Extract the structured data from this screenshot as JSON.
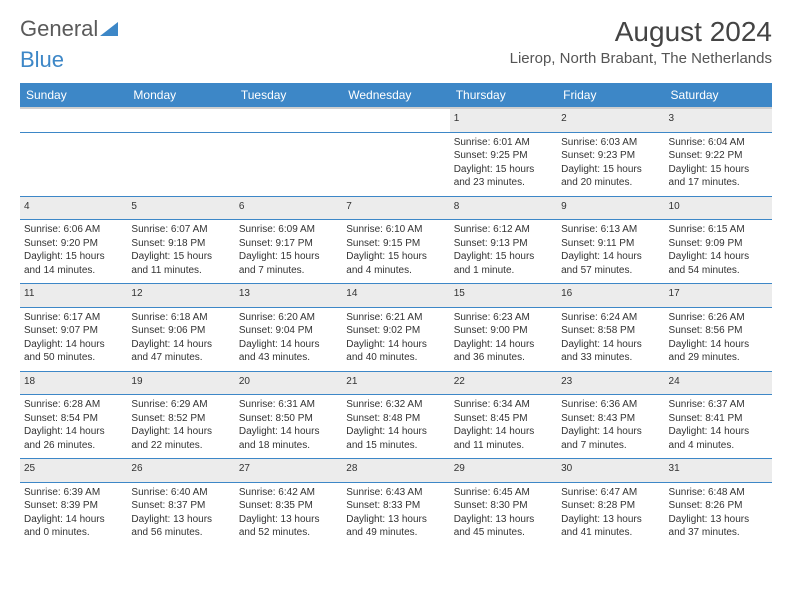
{
  "logo": {
    "part1": "General",
    "part2": "Blue"
  },
  "title": "August 2024",
  "location": "Lierop, North Brabant, The Netherlands",
  "colors": {
    "header_bg": "#3d87c7",
    "header_text": "#ffffff",
    "daynum_bg": "#ececec",
    "border": "#3d87c7",
    "text": "#333333"
  },
  "day_headers": [
    "Sunday",
    "Monday",
    "Tuesday",
    "Wednesday",
    "Thursday",
    "Friday",
    "Saturday"
  ],
  "weeks": [
    [
      null,
      null,
      null,
      null,
      {
        "n": "1",
        "sr": "Sunrise: 6:01 AM",
        "ss": "Sunset: 9:25 PM",
        "dl": "Daylight: 15 hours and 23 minutes."
      },
      {
        "n": "2",
        "sr": "Sunrise: 6:03 AM",
        "ss": "Sunset: 9:23 PM",
        "dl": "Daylight: 15 hours and 20 minutes."
      },
      {
        "n": "3",
        "sr": "Sunrise: 6:04 AM",
        "ss": "Sunset: 9:22 PM",
        "dl": "Daylight: 15 hours and 17 minutes."
      }
    ],
    [
      {
        "n": "4",
        "sr": "Sunrise: 6:06 AM",
        "ss": "Sunset: 9:20 PM",
        "dl": "Daylight: 15 hours and 14 minutes."
      },
      {
        "n": "5",
        "sr": "Sunrise: 6:07 AM",
        "ss": "Sunset: 9:18 PM",
        "dl": "Daylight: 15 hours and 11 minutes."
      },
      {
        "n": "6",
        "sr": "Sunrise: 6:09 AM",
        "ss": "Sunset: 9:17 PM",
        "dl": "Daylight: 15 hours and 7 minutes."
      },
      {
        "n": "7",
        "sr": "Sunrise: 6:10 AM",
        "ss": "Sunset: 9:15 PM",
        "dl": "Daylight: 15 hours and 4 minutes."
      },
      {
        "n": "8",
        "sr": "Sunrise: 6:12 AM",
        "ss": "Sunset: 9:13 PM",
        "dl": "Daylight: 15 hours and 1 minute."
      },
      {
        "n": "9",
        "sr": "Sunrise: 6:13 AM",
        "ss": "Sunset: 9:11 PM",
        "dl": "Daylight: 14 hours and 57 minutes."
      },
      {
        "n": "10",
        "sr": "Sunrise: 6:15 AM",
        "ss": "Sunset: 9:09 PM",
        "dl": "Daylight: 14 hours and 54 minutes."
      }
    ],
    [
      {
        "n": "11",
        "sr": "Sunrise: 6:17 AM",
        "ss": "Sunset: 9:07 PM",
        "dl": "Daylight: 14 hours and 50 minutes."
      },
      {
        "n": "12",
        "sr": "Sunrise: 6:18 AM",
        "ss": "Sunset: 9:06 PM",
        "dl": "Daylight: 14 hours and 47 minutes."
      },
      {
        "n": "13",
        "sr": "Sunrise: 6:20 AM",
        "ss": "Sunset: 9:04 PM",
        "dl": "Daylight: 14 hours and 43 minutes."
      },
      {
        "n": "14",
        "sr": "Sunrise: 6:21 AM",
        "ss": "Sunset: 9:02 PM",
        "dl": "Daylight: 14 hours and 40 minutes."
      },
      {
        "n": "15",
        "sr": "Sunrise: 6:23 AM",
        "ss": "Sunset: 9:00 PM",
        "dl": "Daylight: 14 hours and 36 minutes."
      },
      {
        "n": "16",
        "sr": "Sunrise: 6:24 AM",
        "ss": "Sunset: 8:58 PM",
        "dl": "Daylight: 14 hours and 33 minutes."
      },
      {
        "n": "17",
        "sr": "Sunrise: 6:26 AM",
        "ss": "Sunset: 8:56 PM",
        "dl": "Daylight: 14 hours and 29 minutes."
      }
    ],
    [
      {
        "n": "18",
        "sr": "Sunrise: 6:28 AM",
        "ss": "Sunset: 8:54 PM",
        "dl": "Daylight: 14 hours and 26 minutes."
      },
      {
        "n": "19",
        "sr": "Sunrise: 6:29 AM",
        "ss": "Sunset: 8:52 PM",
        "dl": "Daylight: 14 hours and 22 minutes."
      },
      {
        "n": "20",
        "sr": "Sunrise: 6:31 AM",
        "ss": "Sunset: 8:50 PM",
        "dl": "Daylight: 14 hours and 18 minutes."
      },
      {
        "n": "21",
        "sr": "Sunrise: 6:32 AM",
        "ss": "Sunset: 8:48 PM",
        "dl": "Daylight: 14 hours and 15 minutes."
      },
      {
        "n": "22",
        "sr": "Sunrise: 6:34 AM",
        "ss": "Sunset: 8:45 PM",
        "dl": "Daylight: 14 hours and 11 minutes."
      },
      {
        "n": "23",
        "sr": "Sunrise: 6:36 AM",
        "ss": "Sunset: 8:43 PM",
        "dl": "Daylight: 14 hours and 7 minutes."
      },
      {
        "n": "24",
        "sr": "Sunrise: 6:37 AM",
        "ss": "Sunset: 8:41 PM",
        "dl": "Daylight: 14 hours and 4 minutes."
      }
    ],
    [
      {
        "n": "25",
        "sr": "Sunrise: 6:39 AM",
        "ss": "Sunset: 8:39 PM",
        "dl": "Daylight: 14 hours and 0 minutes."
      },
      {
        "n": "26",
        "sr": "Sunrise: 6:40 AM",
        "ss": "Sunset: 8:37 PM",
        "dl": "Daylight: 13 hours and 56 minutes."
      },
      {
        "n": "27",
        "sr": "Sunrise: 6:42 AM",
        "ss": "Sunset: 8:35 PM",
        "dl": "Daylight: 13 hours and 52 minutes."
      },
      {
        "n": "28",
        "sr": "Sunrise: 6:43 AM",
        "ss": "Sunset: 8:33 PM",
        "dl": "Daylight: 13 hours and 49 minutes."
      },
      {
        "n": "29",
        "sr": "Sunrise: 6:45 AM",
        "ss": "Sunset: 8:30 PM",
        "dl": "Daylight: 13 hours and 45 minutes."
      },
      {
        "n": "30",
        "sr": "Sunrise: 6:47 AM",
        "ss": "Sunset: 8:28 PM",
        "dl": "Daylight: 13 hours and 41 minutes."
      },
      {
        "n": "31",
        "sr": "Sunrise: 6:48 AM",
        "ss": "Sunset: 8:26 PM",
        "dl": "Daylight: 13 hours and 37 minutes."
      }
    ]
  ]
}
